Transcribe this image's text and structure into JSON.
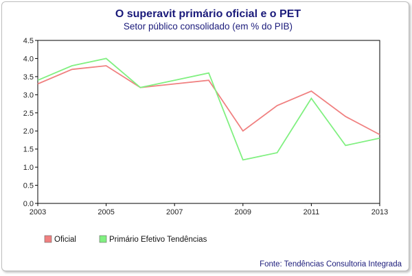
{
  "chart_data": {
    "type": "line",
    "title": "O superavit primário oficial e o PET",
    "subtitle": "Setor público consolidado (em % do PIB)",
    "source": "Fonte: Tendências Consultoria Integrada",
    "x": [
      2003,
      2004,
      2005,
      2006,
      2007,
      2008,
      2009,
      2010,
      2011,
      2012,
      2013
    ],
    "xlim": [
      2003,
      2013
    ],
    "x_ticks": [
      "2003",
      "2005",
      "2007",
      "2009",
      "2011",
      "2013"
    ],
    "ylim": [
      0,
      4.5
    ],
    "y_ticks": [
      "0.0",
      "0.5",
      "1.0",
      "1.5",
      "2.0",
      "2.5",
      "3.0",
      "3.5",
      "4.0",
      "4.5"
    ],
    "grid": false,
    "legend_position": "bottom-left",
    "series": [
      {
        "name": "Oficial",
        "color": "#f08080",
        "values": [
          3.3,
          3.7,
          3.8,
          3.2,
          3.3,
          3.4,
          2.0,
          2.7,
          3.1,
          2.4,
          1.9
        ]
      },
      {
        "name": "Primário Efetivo Tendências",
        "color": "#80f080",
        "values": [
          3.4,
          3.8,
          4.0,
          3.2,
          3.4,
          3.6,
          1.2,
          1.4,
          2.9,
          1.6,
          1.8
        ]
      }
    ]
  }
}
